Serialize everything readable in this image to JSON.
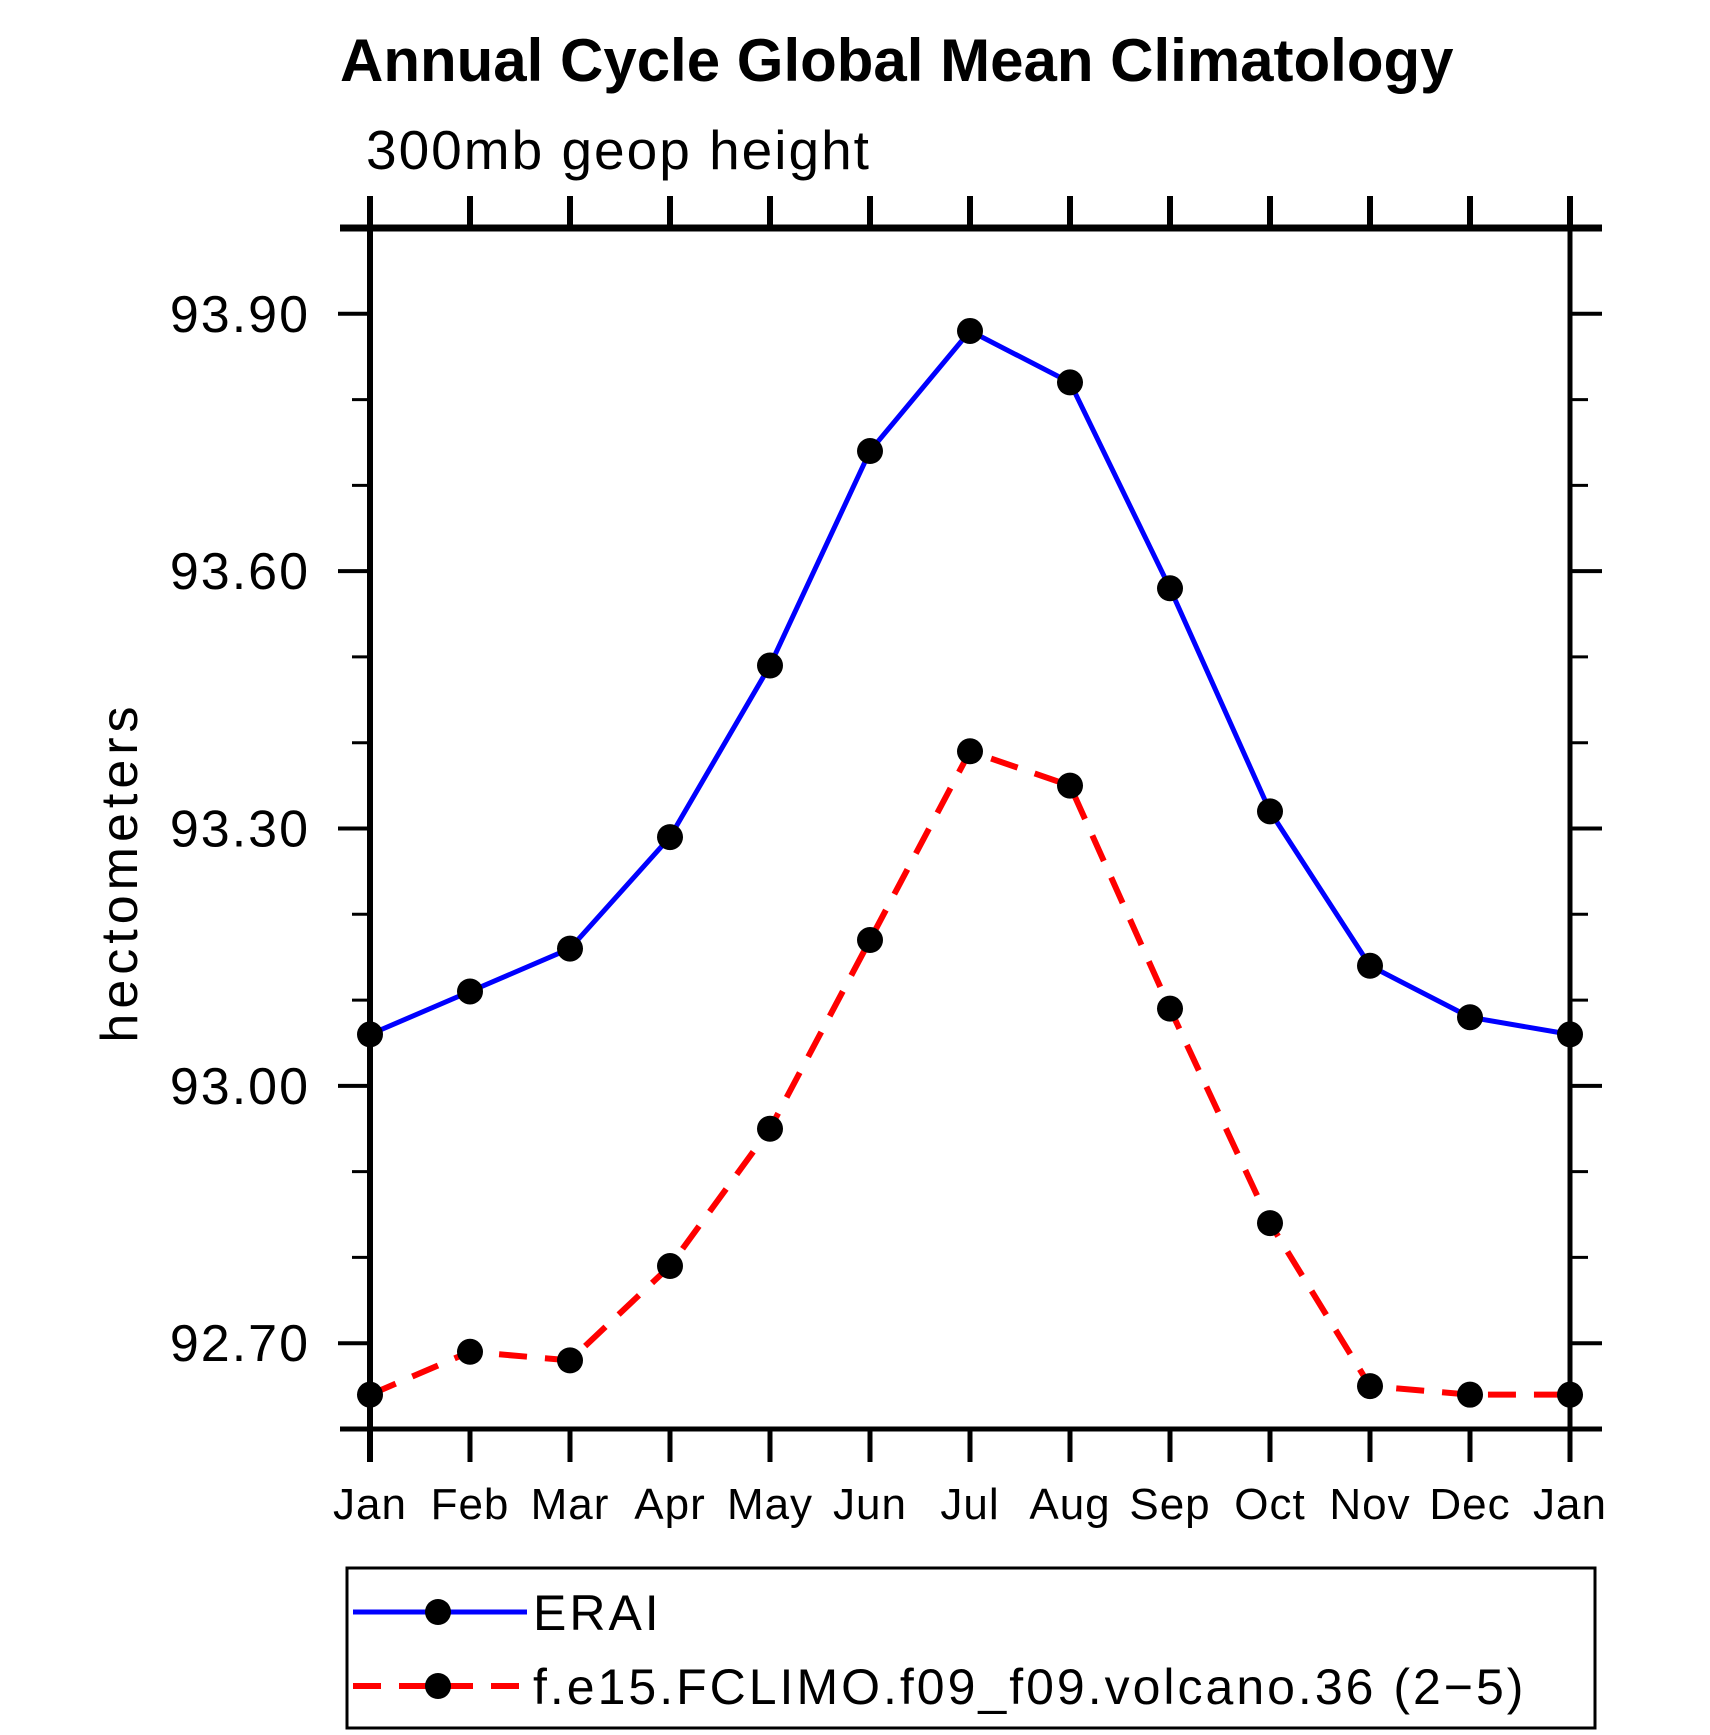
{
  "title": "Annual Cycle Global Mean Climatology",
  "subtitle": "300mb geop height",
  "y_axis_label": "hectometers",
  "colors": {
    "background": "#ffffff",
    "axis": "#000000",
    "text": "#000000",
    "erai_line": "#0000ff",
    "model_line": "#ff0000",
    "marker": "#000000"
  },
  "chart_data": {
    "type": "line",
    "x_categories": [
      "Jan",
      "Feb",
      "Mar",
      "Apr",
      "May",
      "Jun",
      "Jul",
      "Aug",
      "Sep",
      "Oct",
      "Nov",
      "Dec",
      "Jan"
    ],
    "xlabel": "",
    "ylabel": "hectometers",
    "ylim": [
      92.6,
      94.0
    ],
    "y_major_ticks": [
      92.7,
      93.0,
      93.3,
      93.6,
      93.9
    ],
    "y_tick_labels": [
      "92.70",
      "93.00",
      "93.30",
      "93.60",
      "93.90"
    ],
    "y_minor_step": 0.1,
    "grid": false,
    "legend_position": "bottom",
    "series": [
      {
        "name": "ERAI",
        "line_color": "#0000ff",
        "line_style": "solid",
        "marker": "filled-circle",
        "marker_color": "#000000",
        "values": [
          93.06,
          93.11,
          93.16,
          93.29,
          93.49,
          93.74,
          93.88,
          93.82,
          93.58,
          93.32,
          93.14,
          93.08,
          93.06
        ]
      },
      {
        "name": "f.e15.FCLIMO.f09_f09.volcano.36 (2−5)",
        "line_color": "#ff0000",
        "line_style": "dashed",
        "marker": "filled-circle",
        "marker_color": "#000000",
        "values": [
          92.64,
          92.69,
          92.68,
          92.79,
          92.95,
          93.17,
          93.39,
          93.35,
          93.09,
          92.84,
          92.65,
          92.64,
          92.64
        ]
      }
    ]
  }
}
